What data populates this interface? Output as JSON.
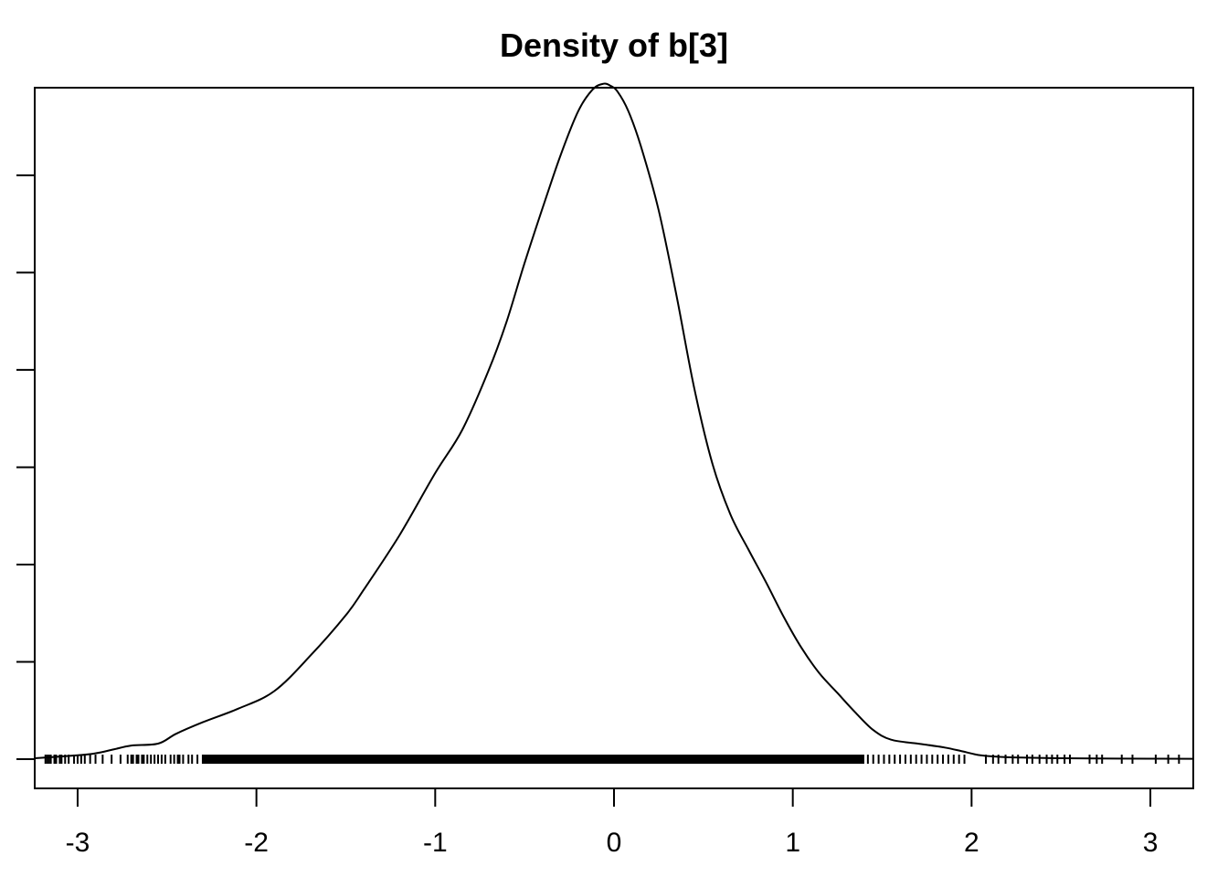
{
  "chart_data": {
    "type": "line",
    "title": "Density of b[3]",
    "xlabel": "",
    "ylabel": "",
    "xlim": [
      -3.24,
      3.24
    ],
    "ylim": [
      -0.015,
      0.345
    ],
    "x_ticks": [
      -3,
      -2,
      -1,
      0,
      1,
      2,
      3
    ],
    "x_tick_labels": [
      "-3",
      "-2",
      "-1",
      "0",
      "1",
      "2",
      "3"
    ],
    "y_ticks": [
      0,
      0.05,
      0.1,
      0.15,
      0.2,
      0.25,
      0.3
    ],
    "y_tick_labels_shown": false,
    "grid": false,
    "legend": "none",
    "line_color": "#000000",
    "series": [
      {
        "x": [
          -3.24,
          -3.0,
          -2.9,
          -2.8,
          -2.7,
          -2.55,
          -2.45,
          -2.3,
          -2.1,
          -1.9,
          -1.7,
          -1.5,
          -1.4,
          -1.2,
          -1.0,
          -0.85,
          -0.7,
          -0.6,
          -0.5,
          -0.4,
          -0.3,
          -0.2,
          -0.12,
          -0.06,
          -0.02,
          0.02,
          0.08,
          0.15,
          0.25,
          0.35,
          0.45,
          0.55,
          0.65,
          0.75,
          0.85,
          0.95,
          1.05,
          1.15,
          1.25,
          1.35,
          1.45,
          1.55,
          1.7,
          1.85,
          1.95,
          2.05,
          2.2,
          2.5,
          2.8,
          3.24
        ],
        "y": [
          0.0005,
          0.002,
          0.003,
          0.005,
          0.007,
          0.008,
          0.013,
          0.019,
          0.026,
          0.035,
          0.053,
          0.074,
          0.087,
          0.115,
          0.147,
          0.169,
          0.2,
          0.225,
          0.255,
          0.283,
          0.31,
          0.333,
          0.344,
          0.347,
          0.346,
          0.343,
          0.333,
          0.315,
          0.282,
          0.238,
          0.19,
          0.152,
          0.126,
          0.108,
          0.091,
          0.073,
          0.057,
          0.044,
          0.034,
          0.024,
          0.015,
          0.01,
          0.008,
          0.006,
          0.004,
          0.002,
          0.001,
          0.0005,
          0.0003,
          0.0002
        ]
      }
    ],
    "rug_x": [
      -3.18,
      -3.17,
      -3.16,
      -3.15,
      -3.13,
      -3.12,
      -3.1,
      -3.09,
      -3.07,
      -3.05,
      -3.02,
      -3.0,
      -2.98,
      -2.96,
      -2.93,
      -2.9,
      -2.86,
      -2.81,
      -2.76,
      -2.72,
      -2.7,
      -2.69,
      -2.67,
      -2.66,
      -2.64,
      -2.63,
      -2.61,
      -2.59,
      -2.57,
      -2.55,
      -2.53,
      -2.51,
      -2.48,
      -2.46,
      -2.44,
      -2.43,
      -2.41,
      -2.38,
      -2.36,
      -2.33,
      -2.3,
      1.42,
      1.45,
      1.48,
      1.51,
      1.54,
      1.57,
      1.6,
      1.63,
      1.66,
      1.69,
      1.72,
      1.75,
      1.78,
      1.81,
      1.84,
      1.87,
      1.9,
      1.93,
      1.96,
      2.08,
      2.12,
      2.15,
      2.19,
      2.23,
      2.26,
      2.31,
      2.34,
      2.38,
      2.42,
      2.45,
      2.48,
      2.52,
      2.55,
      2.66,
      2.7,
      2.73,
      2.84,
      2.9,
      3.03,
      3.1,
      3.16
    ],
    "rug_dense_range": [
      -2.3,
      1.4
    ]
  }
}
